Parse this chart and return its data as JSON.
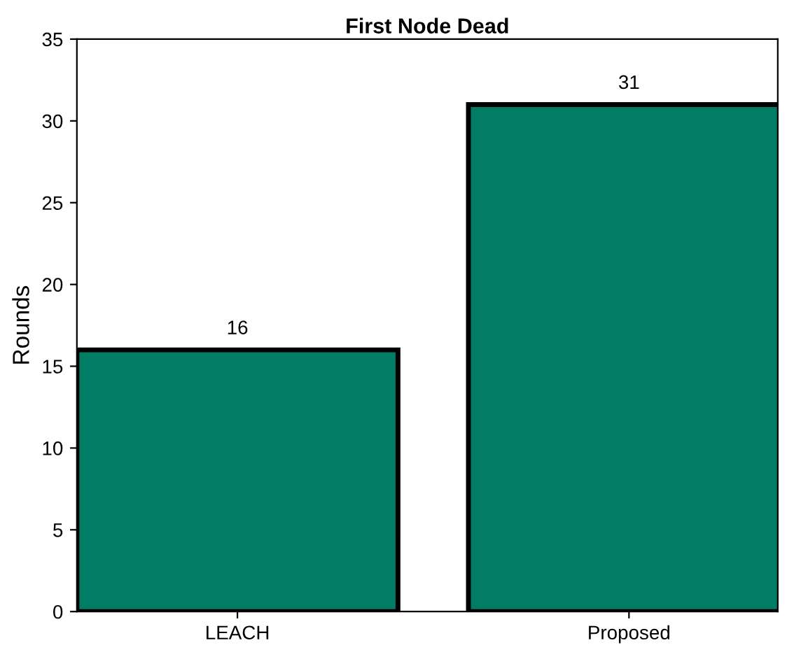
{
  "chart_data": {
    "type": "bar",
    "title": "First Node Dead",
    "ylabel": "Rounds",
    "categories": [
      "LEACH",
      "Proposed"
    ],
    "values": [
      16,
      31
    ],
    "color": "#007d64",
    "ylim": [
      0,
      35
    ],
    "yticks": [
      0,
      5,
      10,
      15,
      20,
      25,
      30,
      35
    ],
    "grid": false,
    "data_labels": true
  }
}
